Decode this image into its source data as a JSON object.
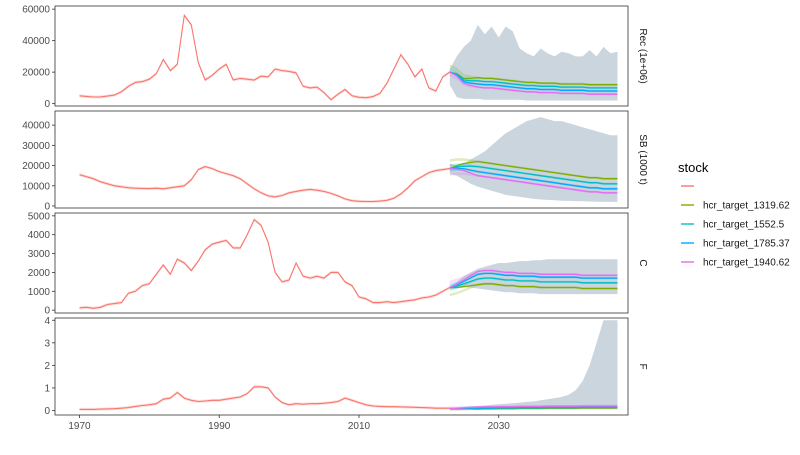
{
  "chart_data": {
    "type": "line",
    "title": "",
    "xlabel": "",
    "ylabel": "",
    "xlim": [
      1966.5,
      2048.5
    ],
    "x_ticks": [
      1970,
      1990,
      2010,
      2030
    ],
    "grid": false,
    "legend": {
      "title": "stock",
      "placement": "right",
      "entries": [
        {
          "label": "",
          "color": "#F8766D"
        },
        {
          "label": "hcr_target_1319.62",
          "color": "#7CAE00"
        },
        {
          "label": "hcr_target_1552.5",
          "color": "#00BFC4"
        },
        {
          "label": "hcr_target_1785.37",
          "color": "#00A9FF"
        },
        {
          "label": "hcr_target_1940.62",
          "color": "#E76BF3"
        }
      ]
    },
    "historical_years": [
      1970,
      1971,
      1972,
      1973,
      1974,
      1975,
      1976,
      1977,
      1978,
      1979,
      1980,
      1981,
      1982,
      1983,
      1984,
      1985,
      1986,
      1987,
      1988,
      1989,
      1990,
      1991,
      1992,
      1993,
      1994,
      1995,
      1996,
      1997,
      1998,
      1999,
      2000,
      2001,
      2002,
      2003,
      2004,
      2005,
      2006,
      2007,
      2008,
      2009,
      2010,
      2011,
      2012,
      2013,
      2014,
      2015,
      2016,
      2017,
      2018,
      2019,
      2020,
      2021,
      2022,
      2023
    ],
    "projection_years": [
      2023,
      2024,
      2025,
      2026,
      2027,
      2028,
      2029,
      2030,
      2031,
      2032,
      2033,
      2034,
      2035,
      2036,
      2037,
      2038,
      2039,
      2040,
      2041,
      2042,
      2043,
      2044,
      2045,
      2046,
      2047
    ],
    "panels": [
      {
        "strip": "Rec (1e+06)",
        "ylim": [
          -1500,
          62000
        ],
        "y_ticks": [
          0,
          20000,
          40000,
          60000
        ],
        "historical": [
          5000,
          4600,
          4200,
          4300,
          4800,
          5400,
          7500,
          11000,
          13500,
          14000,
          15500,
          19000,
          28000,
          21000,
          25000,
          56000,
          50000,
          26000,
          15000,
          18000,
          22000,
          25000,
          15000,
          16000,
          15500,
          15000,
          17500,
          17000,
          22000,
          21000,
          20500,
          19500,
          11000,
          10000,
          10500,
          7000,
          2500,
          6000,
          9000,
          5000,
          4000,
          3800,
          4500,
          6500,
          13000,
          22000,
          31000,
          25000,
          17000,
          22000,
          10000,
          8000,
          17000,
          20000
        ],
        "projection_years": [
          2023,
          2024,
          2025,
          2026,
          2027,
          2028,
          2029,
          2030,
          2031,
          2032,
          2033,
          2034,
          2035,
          2036,
          2037,
          2038,
          2039,
          2040,
          2041,
          2042,
          2043,
          2044,
          2045,
          2046,
          2047
        ],
        "projection_median": [
          20000,
          18000,
          14000,
          13000,
          12500,
          12000,
          12000,
          11500,
          11000,
          10500,
          10000,
          9500,
          9500,
          9000,
          9000,
          9000,
          8500,
          8500,
          8500,
          8500,
          8000,
          8000,
          8000,
          8000,
          8000
        ],
        "projection_band": {
          "lower": [
            12000,
            4000,
            3000,
            3000,
            3000,
            2500,
            2500,
            2500,
            2500,
            2500,
            2500,
            2000,
            2000,
            2000,
            2000,
            2000,
            2000,
            2000,
            2000,
            2000,
            2000,
            2000,
            2000,
            2000,
            2000
          ],
          "upper": [
            22000,
            30000,
            36000,
            40000,
            50000,
            44000,
            49000,
            42000,
            49000,
            46000,
            35000,
            32000,
            30000,
            35000,
            32000,
            30000,
            33000,
            32000,
            30000,
            30000,
            34000,
            30000,
            36000,
            32000,
            33000
          ]
        },
        "hcr_offsets": [
          4000,
          2000,
          0,
          -2000
        ]
      },
      {
        "strip": "SB (1000 t)",
        "ylim": [
          -1000,
          47000
        ],
        "y_ticks": [
          0,
          10000,
          20000,
          30000,
          40000
        ],
        "historical": [
          15500,
          14500,
          13500,
          12000,
          11000,
          10000,
          9500,
          9000,
          8800,
          8700,
          8600,
          8800,
          8500,
          9000,
          9500,
          10000,
          13000,
          18000,
          19500,
          18500,
          17000,
          16000,
          15000,
          13500,
          11000,
          8500,
          6500,
          5000,
          4500,
          5200,
          6500,
          7200,
          7800,
          8200,
          7800,
          7200,
          6200,
          5000,
          3500,
          2600,
          2300,
          2200,
          2200,
          2400,
          2800,
          3800,
          6000,
          9000,
          12500,
          14500,
          16500,
          17500,
          18000,
          18500
        ],
        "projection_years": [
          2023,
          2024,
          2025,
          2026,
          2027,
          2028,
          2029,
          2030,
          2031,
          2032,
          2033,
          2034,
          2035,
          2036,
          2037,
          2038,
          2039,
          2040,
          2041,
          2042,
          2043,
          2044,
          2045,
          2046,
          2047
        ],
        "projection_median": [
          18500,
          19000,
          19000,
          18500,
          18000,
          17500,
          17000,
          16500,
          16000,
          15500,
          15000,
          14500,
          14000,
          13500,
          13000,
          12500,
          12000,
          11500,
          11000,
          10500,
          10000,
          10000,
          9500,
          9500,
          9500
        ],
        "projection_band": {
          "lower": [
            16000,
            15000,
            13000,
            11000,
            9500,
            8500,
            7500,
            6500,
            5500,
            5000,
            4500,
            4000,
            3500,
            3200,
            3000,
            2800,
            2600,
            2500,
            2400,
            2300,
            2200,
            2100,
            2000,
            2000,
            2000
          ],
          "upper": [
            21000,
            20000,
            21000,
            23000,
            25000,
            27000,
            30000,
            33000,
            36000,
            38000,
            40000,
            42000,
            43000,
            44000,
            43000,
            42000,
            42000,
            41000,
            40000,
            39000,
            38000,
            37000,
            36000,
            35000,
            35000
          ]
        },
        "hcr_offsets": [
          4000,
          1500,
          -1000,
          -3000
        ]
      },
      {
        "strip": "C",
        "ylim": [
          -150,
          5150
        ],
        "y_ticks": [
          0,
          1000,
          2000,
          3000,
          4000,
          5000
        ],
        "historical": [
          120,
          150,
          100,
          150,
          300,
          350,
          400,
          900,
          1000,
          1300,
          1400,
          1900,
          2400,
          1900,
          2700,
          2500,
          2100,
          2600,
          3200,
          3500,
          3600,
          3700,
          3300,
          3300,
          4000,
          4800,
          4500,
          3600,
          2000,
          1500,
          1600,
          2500,
          1800,
          1700,
          1800,
          1700,
          2000,
          2000,
          1500,
          1300,
          700,
          600,
          400,
          400,
          450,
          400,
          450,
          500,
          550,
          650,
          700,
          800,
          1000,
          1200
        ],
        "projection_years": [
          2023,
          2024,
          2025,
          2026,
          2027,
          2028,
          2029,
          2030,
          2031,
          2032,
          2033,
          2034,
          2035,
          2036,
          2037,
          2038,
          2039,
          2040,
          2041,
          2042,
          2043,
          2044,
          2045,
          2046,
          2047
        ],
        "projection_median": [
          1200,
          1300,
          1450,
          1600,
          1750,
          1800,
          1800,
          1750,
          1700,
          1700,
          1650,
          1650,
          1650,
          1600,
          1600,
          1600,
          1600,
          1600,
          1600,
          1550,
          1550,
          1550,
          1550,
          1550,
          1550
        ],
        "projection_band": {
          "lower": [
            1100,
            1150,
            1200,
            1200,
            1150,
            1100,
            1050,
            1000,
            950,
            950,
            900,
            900,
            900,
            850,
            850,
            850,
            850,
            850,
            850,
            850,
            850,
            850,
            850,
            850,
            850
          ],
          "upper": [
            1300,
            1500,
            1800,
            2000,
            2200,
            2300,
            2400,
            2500,
            2500,
            2550,
            2600,
            2600,
            2650,
            2650,
            2700,
            2700,
            2700,
            2700,
            2700,
            2700,
            2700,
            2700,
            2700,
            2700,
            2700
          ]
        },
        "hcr_offsets": [
          -400,
          -100,
          150,
          300
        ]
      },
      {
        "strip": "F",
        "ylim": [
          -0.2,
          4.1
        ],
        "y_ticks": [
          0,
          1,
          2,
          3,
          4
        ],
        "historical": [
          0.05,
          0.05,
          0.05,
          0.06,
          0.07,
          0.08,
          0.1,
          0.13,
          0.18,
          0.22,
          0.25,
          0.3,
          0.5,
          0.55,
          0.8,
          0.55,
          0.45,
          0.4,
          0.42,
          0.45,
          0.45,
          0.5,
          0.55,
          0.6,
          0.75,
          1.05,
          1.05,
          1.0,
          0.6,
          0.35,
          0.25,
          0.3,
          0.28,
          0.3,
          0.3,
          0.32,
          0.35,
          0.4,
          0.55,
          0.45,
          0.35,
          0.25,
          0.2,
          0.18,
          0.17,
          0.17,
          0.16,
          0.15,
          0.14,
          0.13,
          0.12,
          0.1,
          0.1,
          0.1
        ],
        "projection_years": [
          2023,
          2024,
          2025,
          2026,
          2027,
          2028,
          2029,
          2030,
          2031,
          2032,
          2033,
          2034,
          2035,
          2036,
          2037,
          2038,
          2039,
          2040,
          2041,
          2042,
          2043,
          2044,
          2045,
          2046,
          2047
        ],
        "projection_median": [
          0.08,
          0.08,
          0.09,
          0.1,
          0.1,
          0.11,
          0.11,
          0.12,
          0.12,
          0.12,
          0.13,
          0.13,
          0.13,
          0.13,
          0.14,
          0.14,
          0.14,
          0.14,
          0.14,
          0.15,
          0.15,
          0.15,
          0.15,
          0.15,
          0.15
        ],
        "projection_band": {
          "lower": [
            0.07,
            0.06,
            0.06,
            0.06,
            0.06,
            0.06,
            0.06,
            0.06,
            0.06,
            0.06,
            0.06,
            0.06,
            0.06,
            0.06,
            0.06,
            0.06,
            0.06,
            0.06,
            0.06,
            0.06,
            0.06,
            0.06,
            0.06,
            0.06,
            0.06
          ],
          "upper": [
            0.1,
            0.12,
            0.15,
            0.18,
            0.2,
            0.22,
            0.25,
            0.28,
            0.3,
            0.32,
            0.35,
            0.38,
            0.4,
            0.45,
            0.5,
            0.55,
            0.6,
            0.7,
            0.9,
            1.3,
            2.0,
            3.0,
            4.0,
            4.0,
            4.0
          ]
        },
        "hcr_offsets": [
          -0.04,
          -0.01,
          0.02,
          0.05
        ]
      }
    ]
  }
}
